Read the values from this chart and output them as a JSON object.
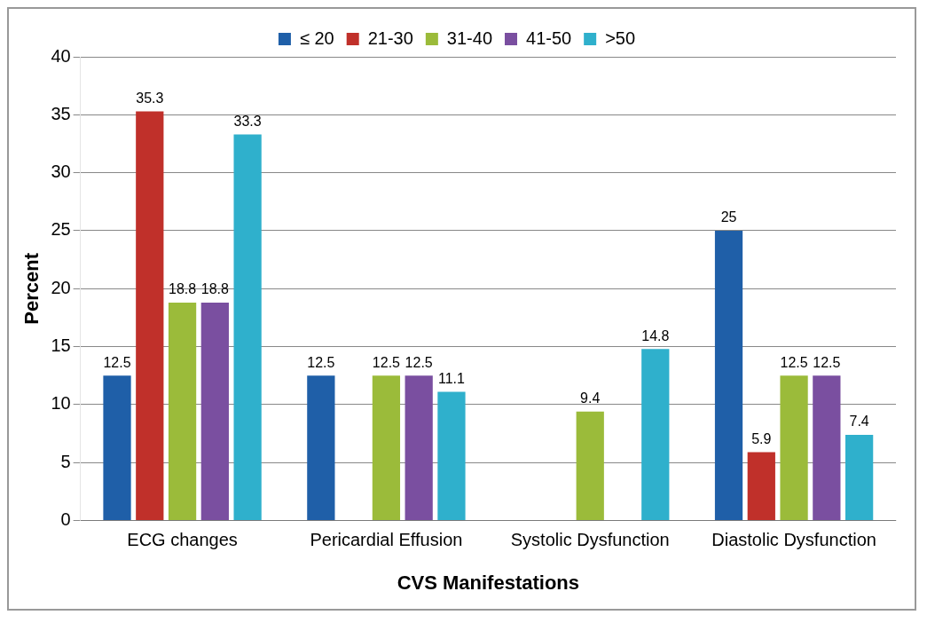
{
  "chart_data": {
    "type": "bar",
    "xlabel": "CVS Manifestations",
    "ylabel": "Percent",
    "categories": [
      "ECG changes",
      "Pericardial Effusion",
      "Systolic Dysfunction",
      "Diastolic Dysfunction"
    ],
    "series": [
      {
        "name": "≤ 20",
        "color": "#1f5fa8",
        "values": [
          12.5,
          12.5,
          null,
          25
        ]
      },
      {
        "name": "21-30",
        "color": "#c0302a",
        "values": [
          35.3,
          null,
          null,
          5.9
        ]
      },
      {
        "name": "31-40",
        "color": "#9bbb3a",
        "values": [
          18.8,
          12.5,
          9.4,
          12.5
        ]
      },
      {
        "name": "41-50",
        "color": "#7a4fa0",
        "values": [
          18.8,
          12.5,
          null,
          12.5
        ]
      },
      {
        "name": ">50",
        "color": "#2fb0cc",
        "values": [
          33.3,
          11.1,
          14.8,
          7.4
        ]
      }
    ],
    "ylim": [
      0,
      40
    ],
    "yticks": [
      0,
      5,
      10,
      15,
      20,
      25,
      30,
      35,
      40
    ],
    "grid": "y",
    "legend": "top",
    "data_labels": true
  }
}
